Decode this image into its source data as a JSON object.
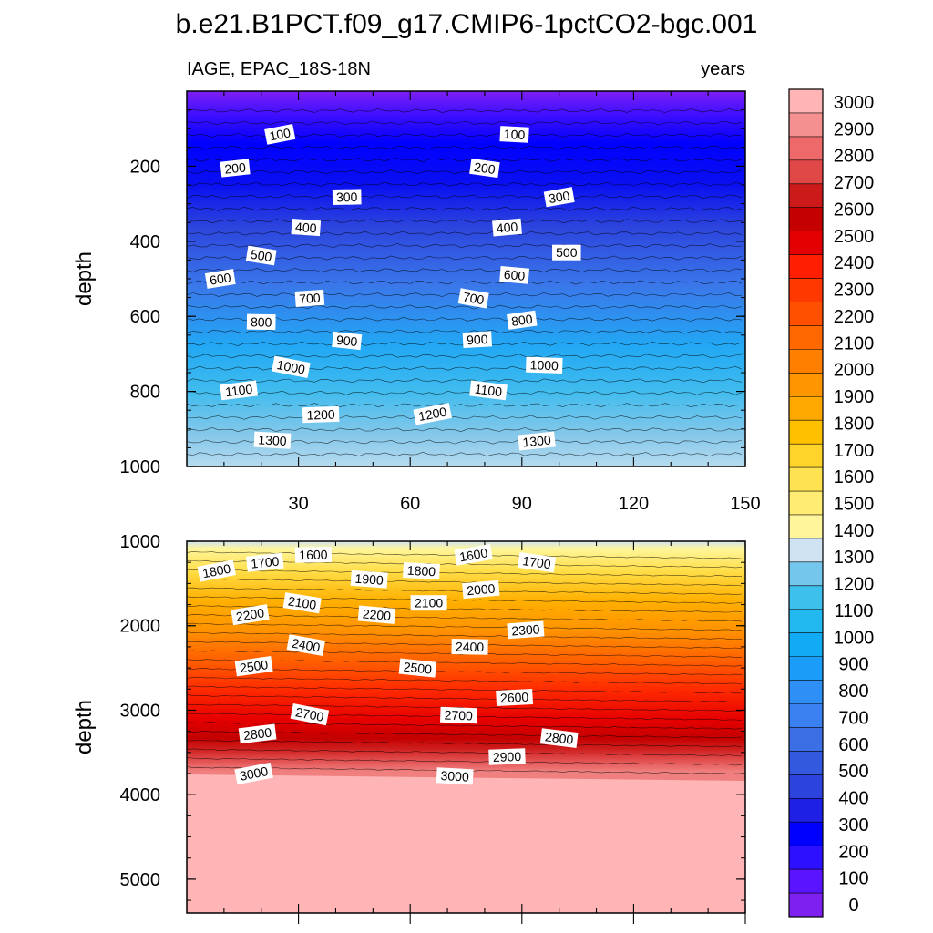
{
  "chart_data": {
    "type": "contour",
    "title": "b.e21.B1PCT.f09_g17.CMIP6-1pctCO2-bgc.001",
    "variable_label": "IAGE, EPAC_18S-18N",
    "units_label": "years",
    "ylabel": "depth",
    "xlim": [
      0,
      150
    ],
    "x_ticks": [
      "30",
      "60",
      "90",
      "120",
      "150"
    ],
    "top_panel": {
      "ylim": [
        0,
        1000
      ],
      "y_ticks": [
        "200",
        "400",
        "600",
        "800",
        "1000"
      ],
      "contour_labels": [
        {
          "text": "100",
          "x": 25,
          "depth": 115
        },
        {
          "text": "100",
          "x": 88,
          "depth": 115
        },
        {
          "text": "200",
          "x": 13,
          "depth": 205
        },
        {
          "text": "200",
          "x": 80,
          "depth": 205
        },
        {
          "text": "300",
          "x": 43,
          "depth": 282
        },
        {
          "text": "300",
          "x": 100,
          "depth": 282
        },
        {
          "text": "400",
          "x": 32,
          "depth": 363
        },
        {
          "text": "400",
          "x": 86,
          "depth": 363
        },
        {
          "text": "500",
          "x": 20,
          "depth": 438
        },
        {
          "text": "500",
          "x": 102,
          "depth": 430
        },
        {
          "text": "600",
          "x": 9,
          "depth": 500
        },
        {
          "text": "600",
          "x": 88,
          "depth": 490
        },
        {
          "text": "700",
          "x": 33,
          "depth": 552
        },
        {
          "text": "700",
          "x": 77,
          "depth": 552
        },
        {
          "text": "800",
          "x": 20,
          "depth": 615
        },
        {
          "text": "800",
          "x": 90,
          "depth": 610
        },
        {
          "text": "900",
          "x": 43,
          "depth": 665
        },
        {
          "text": "900",
          "x": 78,
          "depth": 662
        },
        {
          "text": "1000",
          "x": 28,
          "depth": 735
        },
        {
          "text": "1000",
          "x": 96,
          "depth": 730
        },
        {
          "text": "1100",
          "x": 14,
          "depth": 797
        },
        {
          "text": "1100",
          "x": 81,
          "depth": 797
        },
        {
          "text": "1200",
          "x": 36,
          "depth": 862
        },
        {
          "text": "1200",
          "x": 66,
          "depth": 860
        },
        {
          "text": "1300",
          "x": 23,
          "depth": 930
        },
        {
          "text": "1300",
          "x": 94,
          "depth": 932
        }
      ]
    },
    "bottom_panel": {
      "ylim": [
        1000,
        5400
      ],
      "y_ticks": [
        "1000",
        "2000",
        "3000",
        "4000",
        "5000"
      ],
      "contour_labels": [
        {
          "text": "1800",
          "x": 8,
          "depth": 1350
        },
        {
          "text": "1800",
          "x": 63,
          "depth": 1350
        },
        {
          "text": "1700",
          "x": 21,
          "depth": 1250
        },
        {
          "text": "1700",
          "x": 94,
          "depth": 1250
        },
        {
          "text": "1600",
          "x": 34,
          "depth": 1160
        },
        {
          "text": "1600",
          "x": 77,
          "depth": 1160
        },
        {
          "text": "1900",
          "x": 49,
          "depth": 1450
        },
        {
          "text": "2000",
          "x": 79,
          "depth": 1570
        },
        {
          "text": "2100",
          "x": 31,
          "depth": 1730
        },
        {
          "text": "2100",
          "x": 65,
          "depth": 1730
        },
        {
          "text": "2200",
          "x": 17,
          "depth": 1870
        },
        {
          "text": "2200",
          "x": 51,
          "depth": 1870
        },
        {
          "text": "2300",
          "x": 91,
          "depth": 2050
        },
        {
          "text": "2400",
          "x": 32,
          "depth": 2230
        },
        {
          "text": "2400",
          "x": 76,
          "depth": 2250
        },
        {
          "text": "2500",
          "x": 18,
          "depth": 2480
        },
        {
          "text": "2500",
          "x": 62,
          "depth": 2500
        },
        {
          "text": "2600",
          "x": 88,
          "depth": 2850
        },
        {
          "text": "2700",
          "x": 33,
          "depth": 3050
        },
        {
          "text": "2700",
          "x": 73,
          "depth": 3060
        },
        {
          "text": "2800",
          "x": 19,
          "depth": 3280
        },
        {
          "text": "2800",
          "x": 100,
          "depth": 3330
        },
        {
          "text": "2900",
          "x": 86,
          "depth": 3550
        },
        {
          "text": "3000",
          "x": 18,
          "depth": 3750
        },
        {
          "text": "3000",
          "x": 72,
          "depth": 3780
        }
      ]
    },
    "colorbar": {
      "levels": [
        "0",
        "100",
        "200",
        "300",
        "400",
        "500",
        "600",
        "700",
        "800",
        "900",
        "1000",
        "1100",
        "1200",
        "1300",
        "1400",
        "1500",
        "1600",
        "1700",
        "1800",
        "1900",
        "2000",
        "2100",
        "2200",
        "2300",
        "2400",
        "2500",
        "2600",
        "2700",
        "2800",
        "2900",
        "3000"
      ],
      "colors": [
        "#7e20f0",
        "#5a14ff",
        "#2d10ff",
        "#0000ff",
        "#1f20e6",
        "#2c44dd",
        "#3359de",
        "#3c6fe4",
        "#3a80f0",
        "#2e8ff6",
        "#1a9cf8",
        "#10aaf5",
        "#22b8f0",
        "#3ec0ec",
        "#74c6ed",
        "#cfe3f3",
        "#fff59a",
        "#ffed73",
        "#ffe250",
        "#ffd42a",
        "#ffc000",
        "#ffa800",
        "#ff9600",
        "#ff8000",
        "#ff6800",
        "#ff5000",
        "#ff3800",
        "#ff1e00",
        "#e40000",
        "#c40000",
        "#cc1a1a",
        "#e04848",
        "#ee6a6a",
        "#f49090",
        "#ffb5b5"
      ]
    }
  }
}
